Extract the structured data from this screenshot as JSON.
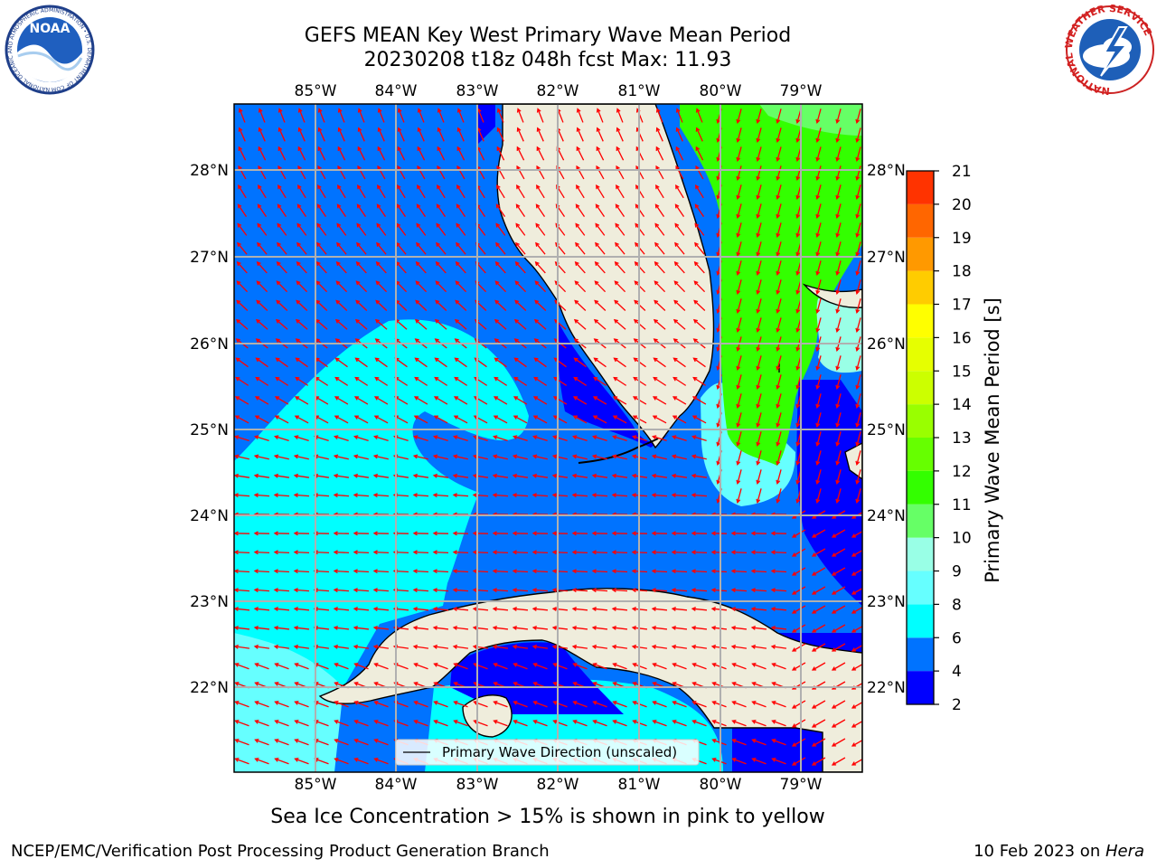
{
  "title_line1": "GEFS MEAN Key West Primary Wave Mean Period",
  "title_line2": "20230208 t18z 048h fcst   Max: 11.93",
  "caption": "Sea Ice Concentration > 15% is shown in pink to yellow",
  "footer_left": "NCEP/EMC/Verification Post Processing Product Generation Branch",
  "footer_date": "10 Feb 2023 on ",
  "footer_host": "Hera",
  "legend_label": "Primary Wave Direction (unscaled)",
  "colorbar": {
    "label": "Primary Wave Mean Period [s]",
    "ticks": [
      "2",
      "4",
      "6",
      "8",
      "9",
      "10",
      "11",
      "12",
      "13",
      "14",
      "15",
      "16",
      "17",
      "18",
      "19",
      "20",
      "21"
    ],
    "colors": [
      "#0000ff",
      "#0073ff",
      "#00ffff",
      "#66ffff",
      "#99ffe6",
      "#66ff66",
      "#33ff00",
      "#66ff00",
      "#99ff00",
      "#ccff00",
      "#e6ff00",
      "#ffff00",
      "#ffcc00",
      "#ff9900",
      "#ff6600",
      "#ff3300"
    ]
  },
  "map": {
    "lon_labels": [
      "85°W",
      "84°W",
      "83°W",
      "82°W",
      "81°W",
      "80°W",
      "79°W"
    ],
    "lat_labels": [
      "28°N",
      "27°N",
      "26°N",
      "25°N",
      "24°N",
      "23°N",
      "22°N"
    ],
    "land_color": "#efeddc",
    "arrow_color": "#ff0000"
  },
  "logos": {
    "noaa_text": "NOAA",
    "noaa_ring": "NATIONAL OCEANIC AND ATMOSPHERIC ADMINISTRATION • U.S. DEPARTMENT OF COMMERCE",
    "nws_ring": "NATIONAL WEATHER SERVICE"
  }
}
